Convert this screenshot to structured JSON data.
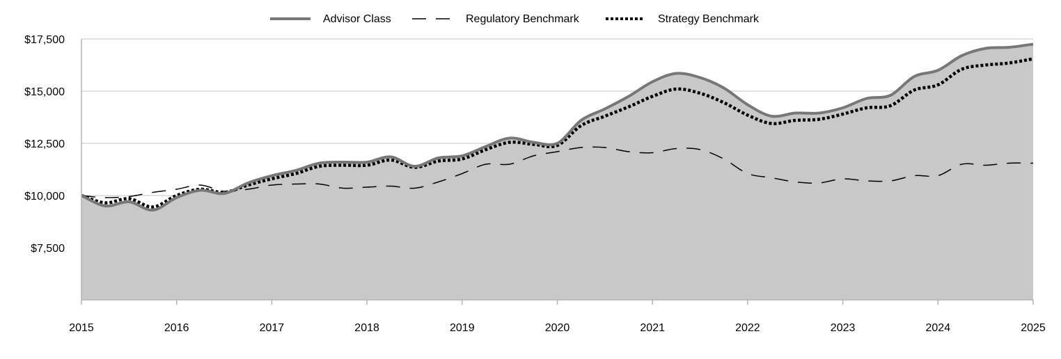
{
  "chart_data": {
    "type": "line",
    "title": "",
    "xlabel": "",
    "ylabel": "",
    "x_range": [
      2015,
      2025
    ],
    "ylim": [
      5000,
      17500
    ],
    "y_ticks": [
      7500,
      10000,
      12500,
      15000,
      17500
    ],
    "y_tick_labels": [
      "$7,500",
      "$10,000",
      "$12,500",
      "$15,000",
      "$17,500"
    ],
    "x_ticks": [
      2015,
      2016,
      2017,
      2018,
      2019,
      2020,
      2021,
      2022,
      2023,
      2024,
      2025
    ],
    "x_tick_labels": [
      "2015",
      "2016",
      "2017",
      "2018",
      "2019",
      "2020",
      "2021",
      "2022",
      "2023",
      "2024",
      "2025"
    ],
    "grid": true,
    "legend_position": "top-center",
    "colors": {
      "advisor": "#777777",
      "regulatory": "#000000",
      "strategy": "#000000",
      "area_fill": "#c8c8c8",
      "grid": "#d9d9d9"
    },
    "series": [
      {
        "name": "Advisor Class",
        "style": "solid-area",
        "x": [
          2015,
          2015.25,
          2015.5,
          2015.75,
          2016,
          2016.25,
          2016.5,
          2016.75,
          2017,
          2017.25,
          2017.5,
          2017.75,
          2018,
          2018.25,
          2018.5,
          2018.75,
          2019,
          2019.25,
          2019.5,
          2019.75,
          2020,
          2020.25,
          2020.5,
          2020.75,
          2021,
          2021.25,
          2021.5,
          2021.75,
          2022,
          2022.25,
          2022.5,
          2022.75,
          2023,
          2023.25,
          2023.5,
          2023.75,
          2024,
          2024.25,
          2024.5,
          2024.75,
          2025
        ],
        "values": [
          10000,
          9500,
          9700,
          9300,
          9900,
          10250,
          10100,
          10600,
          10950,
          11200,
          11550,
          11600,
          11600,
          11850,
          11400,
          11800,
          11900,
          12350,
          12750,
          12550,
          12500,
          13600,
          14150,
          14750,
          15450,
          15850,
          15650,
          15150,
          14350,
          13800,
          13950,
          13950,
          14200,
          14650,
          14800,
          15700,
          16000,
          16700,
          17050,
          17100,
          17250
        ]
      },
      {
        "name": "Regulatory Benchmark",
        "style": "dashed",
        "x": [
          2015,
          2015.25,
          2015.5,
          2015.75,
          2016,
          2016.25,
          2016.5,
          2016.75,
          2017,
          2017.25,
          2017.5,
          2017.75,
          2018,
          2018.25,
          2018.5,
          2018.75,
          2019,
          2019.25,
          2019.5,
          2019.75,
          2020,
          2020.25,
          2020.5,
          2020.75,
          2021,
          2021.25,
          2021.5,
          2021.75,
          2022,
          2022.25,
          2022.5,
          2022.75,
          2023,
          2023.25,
          2023.5,
          2023.75,
          2024,
          2024.25,
          2024.5,
          2024.75,
          2025
        ],
        "values": [
          10000,
          9900,
          9950,
          10150,
          10300,
          10500,
          10200,
          10300,
          10500,
          10550,
          10550,
          10350,
          10400,
          10450,
          10350,
          10650,
          11050,
          11500,
          11500,
          11900,
          12100,
          12300,
          12300,
          12100,
          12050,
          12250,
          12200,
          11750,
          11050,
          10850,
          10650,
          10600,
          10800,
          10700,
          10700,
          10950,
          10950,
          11500,
          11450,
          11550,
          11550
        ]
      },
      {
        "name": "Strategy Benchmark",
        "style": "dotted",
        "x": [
          2015,
          2015.25,
          2015.5,
          2015.75,
          2016,
          2016.25,
          2016.5,
          2016.75,
          2017,
          2017.25,
          2017.5,
          2017.75,
          2018,
          2018.25,
          2018.5,
          2018.75,
          2019,
          2019.25,
          2019.5,
          2019.75,
          2020,
          2020.25,
          2020.5,
          2020.75,
          2021,
          2021.25,
          2021.5,
          2021.75,
          2022,
          2022.25,
          2022.5,
          2022.75,
          2023,
          2023.25,
          2023.5,
          2023.75,
          2024,
          2024.25,
          2024.5,
          2024.75,
          2025
        ],
        "values": [
          10000,
          9650,
          9850,
          9450,
          10000,
          10300,
          10150,
          10500,
          10800,
          11050,
          11400,
          11450,
          11450,
          11700,
          11350,
          11650,
          11750,
          12200,
          12550,
          12450,
          12400,
          13350,
          13800,
          14250,
          14750,
          15100,
          14900,
          14450,
          13850,
          13450,
          13600,
          13650,
          13900,
          14200,
          14300,
          15050,
          15300,
          16050,
          16250,
          16350,
          16550
        ]
      }
    ]
  }
}
